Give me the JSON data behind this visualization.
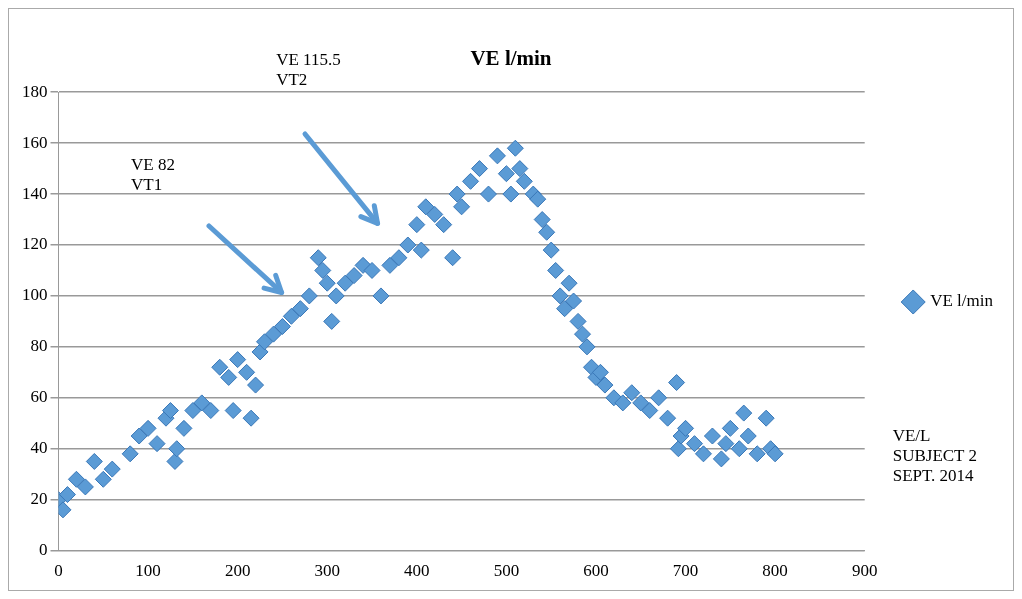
{
  "chart_data": {
    "type": "scatter",
    "title": "VE l/min",
    "x": [
      0,
      5,
      10,
      20,
      30,
      40,
      50,
      60,
      80,
      90,
      100,
      110,
      120,
      125,
      130,
      132,
      140,
      150,
      160,
      170,
      180,
      190,
      195,
      200,
      210,
      215,
      220,
      225,
      230,
      240,
      250,
      260,
      270,
      280,
      290,
      295,
      300,
      305,
      310,
      320,
      330,
      340,
      350,
      360,
      370,
      380,
      390,
      400,
      405,
      410,
      420,
      430,
      440,
      445,
      450,
      460,
      470,
      480,
      490,
      500,
      505,
      510,
      515,
      520,
      530,
      535,
      540,
      545,
      550,
      555,
      560,
      565,
      570,
      575,
      580,
      585,
      590,
      595,
      600,
      605,
      610,
      620,
      630,
      640,
      650,
      660,
      670,
      680,
      690,
      692,
      695,
      700,
      710,
      720,
      730,
      740,
      745,
      750,
      760,
      765,
      770,
      780,
      790,
      795,
      800
    ],
    "series": [
      {
        "name": "VE l/min",
        "color": "#5b9bd5",
        "values": [
          20,
          16,
          22,
          28,
          25,
          35,
          28,
          32,
          38,
          45,
          48,
          42,
          52,
          55,
          35,
          40,
          48,
          55,
          58,
          55,
          72,
          68,
          55,
          75,
          70,
          52,
          65,
          78,
          82,
          85,
          88,
          92,
          95,
          100,
          115,
          110,
          105,
          90,
          100,
          105,
          108,
          112,
          110,
          100,
          112,
          115,
          120,
          128,
          118,
          135,
          132,
          128,
          115,
          140,
          135,
          145,
          150,
          140,
          155,
          148,
          140,
          158,
          150,
          145,
          140,
          138,
          130,
          125,
          118,
          110,
          100,
          95,
          105,
          98,
          90,
          85,
          80,
          72,
          68,
          70,
          65,
          60,
          58,
          62,
          58,
          55,
          60,
          52,
          66,
          40,
          45,
          48,
          42,
          38,
          45,
          36,
          42,
          48,
          40,
          54,
          45,
          38,
          52,
          40,
          38
        ]
      }
    ],
    "xlim": [
      0,
      900
    ],
    "xticks": [
      0,
      100,
      200,
      300,
      400,
      500,
      600,
      700,
      800,
      900
    ],
    "ylim": [
      0,
      180
    ],
    "yticks": [
      0,
      20,
      40,
      60,
      80,
      100,
      120,
      140,
      160,
      180
    ],
    "grid": "y",
    "legend": "right",
    "marker": "diamond",
    "annotations": [
      "VE 115.5\nVT2",
      "VE 82\nVT1",
      "VE/L\nSUBJECT 2\nSEPT. 2014"
    ]
  }
}
